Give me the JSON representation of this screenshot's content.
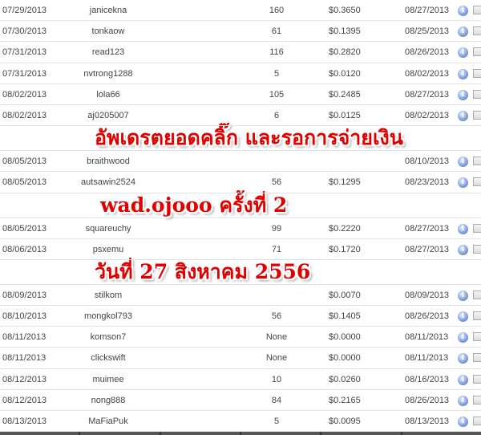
{
  "rows": [
    {
      "date": "07/29/2013",
      "user": "janicekna",
      "clicks": "160",
      "amount": "$0.3650",
      "paid": "08/27/2013"
    },
    {
      "date": "07/30/2013",
      "user": "tonkaow",
      "clicks": "61",
      "amount": "$0.1395",
      "paid": "08/25/2013"
    },
    {
      "date": "07/31/2013",
      "user": "read123",
      "clicks": "116",
      "amount": "$0.2820",
      "paid": "08/26/2013"
    },
    {
      "date": "07/31/2013",
      "user": "nvtrong1288",
      "clicks": "5",
      "amount": "$0.0120",
      "paid": "08/02/2013"
    },
    {
      "date": "08/02/2013",
      "user": "lola66",
      "clicks": "105",
      "amount": "$0.2485",
      "paid": "08/27/2013"
    },
    {
      "date": "08/02/2013",
      "user": "aj0205007",
      "clicks": "6",
      "amount": "$0.0125",
      "paid": "08/02/2013"
    },
    {
      "date": "08/05/2013",
      "user": "braithwood",
      "clicks": "",
      "amount": "",
      "paid": "08/10/2013"
    },
    {
      "date": "08/05/2013",
      "user": "autsawin2524",
      "clicks": "56",
      "amount": "$0.1295",
      "paid": "08/23/2013"
    },
    {
      "date": "08/05/2013",
      "user": "squareuchy",
      "clicks": "99",
      "amount": "$0.2220",
      "paid": "08/27/2013"
    },
    {
      "date": "08/06/2013",
      "user": "psxemu",
      "clicks": "71",
      "amount": "$0.1720",
      "paid": "08/27/2013"
    },
    {
      "date": "08/09/2013",
      "user": "stilkom",
      "clicks": "",
      "amount": "$0.0070",
      "paid": "08/09/2013"
    },
    {
      "date": "08/10/2013",
      "user": "mongkol793",
      "clicks": "56",
      "amount": "$0.1405",
      "paid": "08/26/2013"
    },
    {
      "date": "08/11/2013",
      "user": "komson7",
      "clicks": "None",
      "amount": "$0.0000",
      "paid": "08/11/2013"
    },
    {
      "date": "08/11/2013",
      "user": "clickswift",
      "clicks": "None",
      "amount": "$0.0000",
      "paid": "08/11/2013"
    },
    {
      "date": "08/12/2013",
      "user": "muimee",
      "clicks": "10",
      "amount": "$0.0260",
      "paid": "08/16/2013"
    },
    {
      "date": "08/12/2013",
      "user": "nong888",
      "clicks": "84",
      "amount": "$0.2165",
      "paid": "08/26/2013"
    },
    {
      "date": "08/13/2013",
      "user": "MaFiaPuk",
      "clicks": "5",
      "amount": "$0.0095",
      "paid": "08/13/2013"
    }
  ],
  "row_icons": {
    "info": "info-icon",
    "select": "checkbox"
  },
  "info_glyph": "i",
  "overlay": {
    "line1": "อัพเดรตยอดคลิ๊ก และรอการจ่ายเงิน",
    "line2": "wad.ojooo ครั้งที่ 2",
    "line3": "วันที่ 27 สิงหาคม 2556",
    "color": "#e00000"
  }
}
